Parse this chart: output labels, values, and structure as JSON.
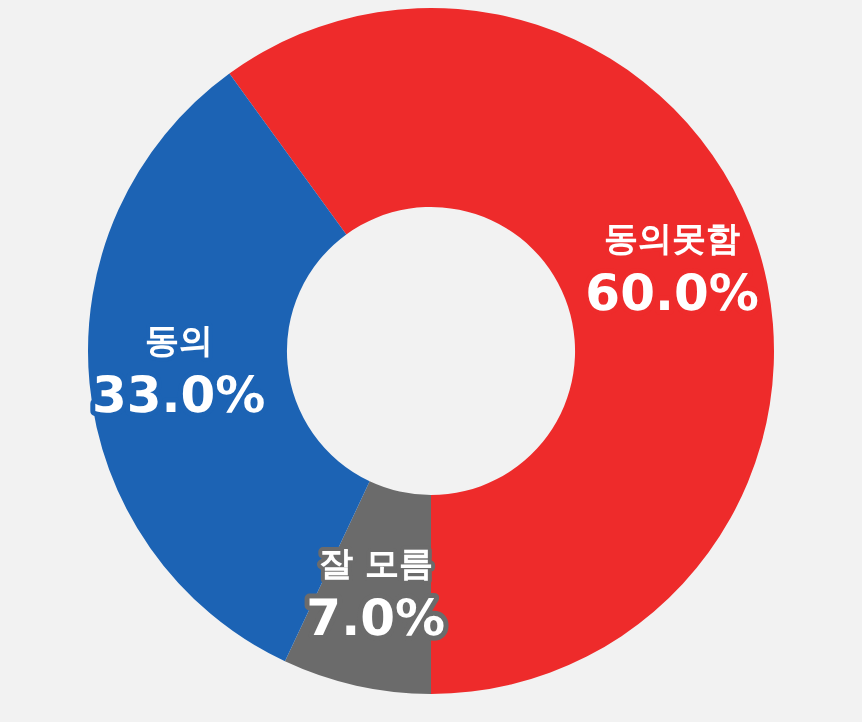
{
  "chart_data": {
    "type": "donut",
    "categories": [
      "동의못함",
      "잘 모름",
      "동의"
    ],
    "values": [
      60.0,
      7.0,
      33.0
    ],
    "colors": [
      "#ee2b2b",
      "#6b6b6b",
      "#1c63b4"
    ],
    "value_labels": [
      "60.0%",
      "7.0%",
      "33.0%"
    ],
    "legend": false
  }
}
